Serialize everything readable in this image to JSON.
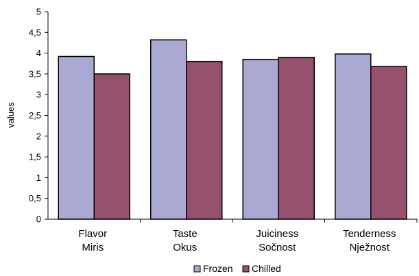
{
  "chart_data": {
    "type": "bar",
    "ylabel": "values",
    "ylim": [
      0,
      5
    ],
    "yticks": [
      "0",
      "0,5",
      "1",
      "1,5",
      "2",
      "2,5",
      "3",
      "3,5",
      "4",
      "4,5",
      "5"
    ],
    "categories": [
      [
        "Flavor",
        "Miris"
      ],
      [
        "Taste",
        "Okus"
      ],
      [
        "Juiciness",
        "Sočnost"
      ],
      [
        "Tenderness",
        "Nježnost"
      ]
    ],
    "series": [
      {
        "name": "Frozen",
        "color": "#a9a9d3",
        "values": [
          3.92,
          4.32,
          3.85,
          3.98
        ]
      },
      {
        "name": "Chilled",
        "color": "#95506e",
        "values": [
          3.5,
          3.8,
          3.9,
          3.68
        ]
      }
    ],
    "legend_position": "bottom",
    "grid": false
  }
}
